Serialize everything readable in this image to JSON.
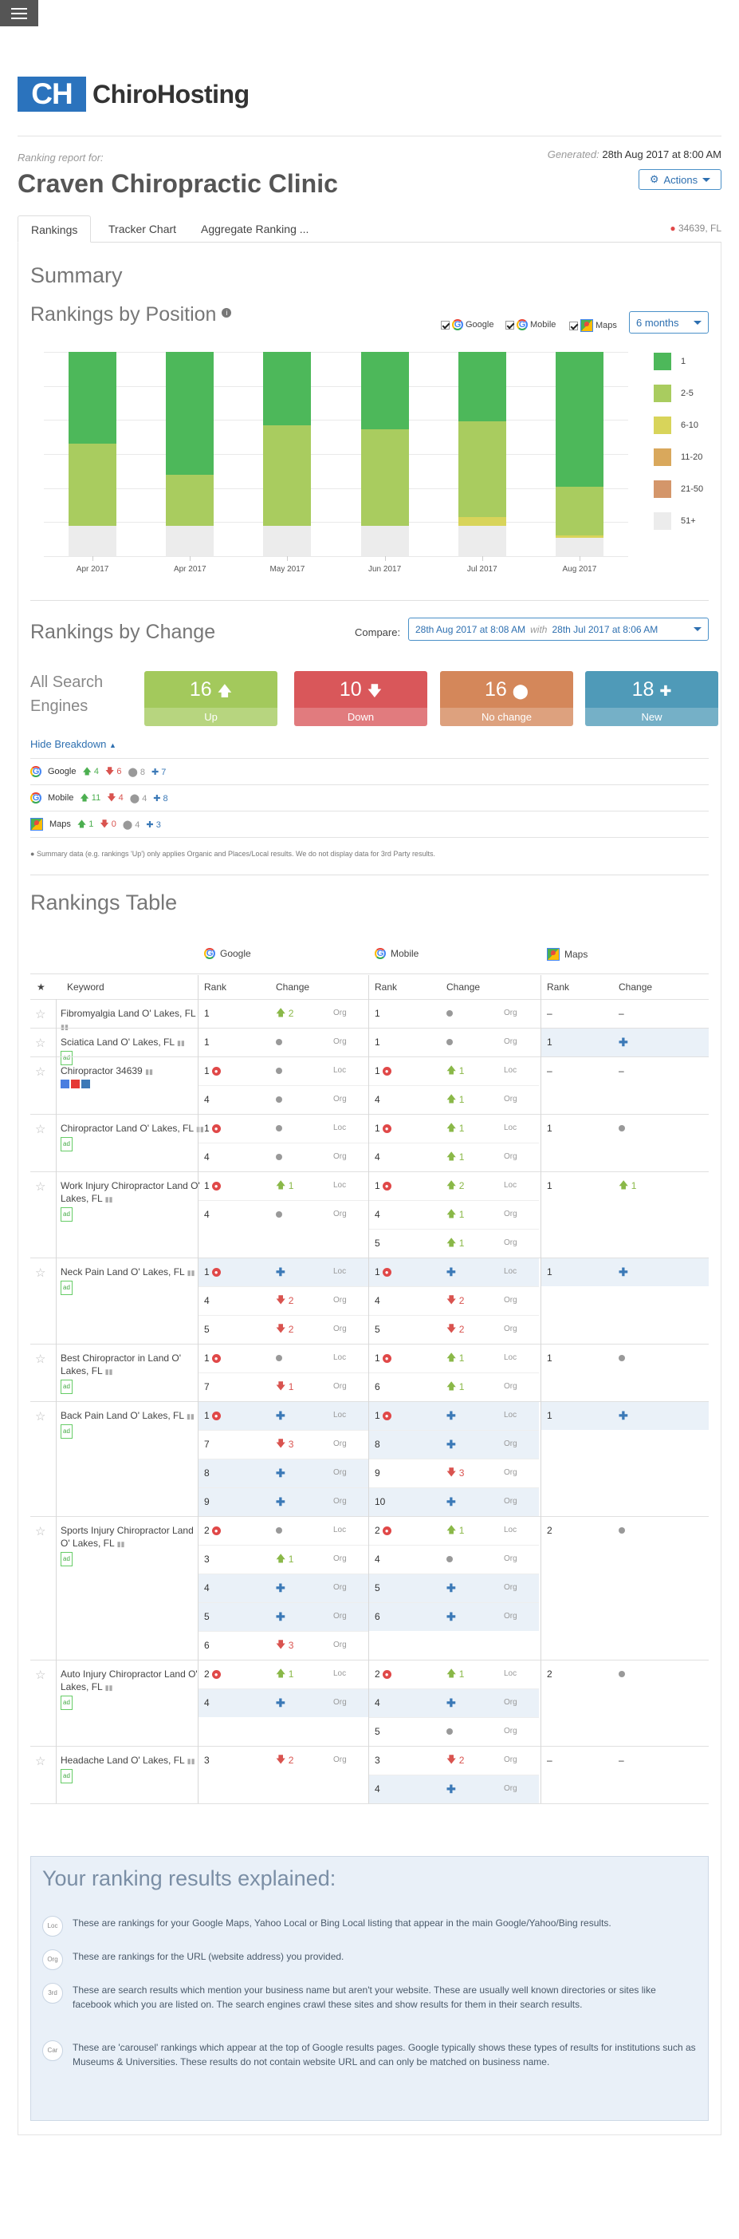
{
  "brand": {
    "logo_mark": "CH",
    "name": "ChiroHosting"
  },
  "report": {
    "label": "Ranking report for:",
    "clinic": "Craven Chiropractic Clinic",
    "generated_label": "Generated:",
    "generated_value": "28th Aug 2017 at 8:00 AM",
    "actions": "Actions"
  },
  "tabs": [
    "Rankings",
    "Tracker Chart",
    "Aggregate Ranking ..."
  ],
  "location": "34639, FL",
  "summary": {
    "title": "Summary",
    "subtitle": "Rankings by Position",
    "filters": [
      "Google",
      "Mobile",
      "Maps"
    ],
    "period": "6 months"
  },
  "chart_data": {
    "type": "bar",
    "stacked": true,
    "categories": [
      "Apr 2017",
      "Apr 2017",
      "May 2017",
      "Jun 2017",
      "Jul 2017",
      "Aug 2017"
    ],
    "ylim": [
      0,
      100
    ],
    "grid": true,
    "legend_position": "right",
    "series": [
      {
        "name": "51+",
        "color": "#ececec",
        "values": [
          15,
          15,
          15,
          15,
          15,
          9
        ]
      },
      {
        "name": "21-50",
        "color": "#d4966a",
        "values": [
          0,
          0,
          0,
          0,
          0,
          0
        ]
      },
      {
        "name": "11-20",
        "color": "#d9a85c",
        "values": [
          0,
          0,
          0,
          0,
          0,
          0
        ]
      },
      {
        "name": "6-10",
        "color": "#d8d45a",
        "values": [
          0,
          0,
          0,
          0,
          4,
          1
        ]
      },
      {
        "name": "2-5",
        "color": "#a9cc5f",
        "values": [
          40,
          25,
          49,
          47,
          47,
          24
        ]
      },
      {
        "name": "1",
        "color": "#4db85a",
        "values": [
          45,
          60,
          36,
          38,
          34,
          66
        ]
      }
    ]
  },
  "change": {
    "title": "Rankings by Change",
    "compare_label": "Compare:",
    "compare_from": "28th Aug 2017 at 8:08 AM",
    "with": "with",
    "compare_to": "28th Jul 2017 at 8:06 AM",
    "engines_label": "All Search Engines",
    "cards": [
      {
        "value": "16",
        "icon": "up-arrow",
        "label": "Up",
        "color": "#a3c95c"
      },
      {
        "value": "10",
        "icon": "down-arrow",
        "label": "Down",
        "color": "#d9575a"
      },
      {
        "value": "16",
        "icon": "circle",
        "label": "No change",
        "color": "#d4875a"
      },
      {
        "value": "18",
        "icon": "plus",
        "label": "New",
        "color": "#4f9ab8"
      }
    ],
    "hide_breakdown": "Hide Breakdown",
    "breakdown": [
      {
        "engine": "Google",
        "up": "4",
        "down": "6",
        "same": "8",
        "new": "7"
      },
      {
        "engine": "Mobile",
        "up": "11",
        "down": "4",
        "same": "4",
        "new": "8"
      },
      {
        "engine": "Maps",
        "up": "1",
        "down": "0",
        "same": "4",
        "new": "3"
      }
    ],
    "note": "Summary data (e.g. rankings 'Up') only applies Organic and Places/Local results. We do not display data for 3rd Party results."
  },
  "table": {
    "title": "Rankings Table",
    "engines": [
      "Google",
      "Mobile",
      "Maps"
    ],
    "headers": {
      "keyword": "Keyword",
      "rank": "Rank",
      "change": "Change"
    },
    "rows": [
      {
        "kw": "Fibromyalgia Land O' Lakes, FL",
        "lines": [
          [
            "1",
            "",
            "up",
            "2",
            "Org",
            "1",
            "",
            "same",
            "",
            "Org",
            "–",
            "",
            "dash",
            "",
            ""
          ]
        ]
      },
      {
        "kw": "Sciatica Land O' Lakes, FL",
        "lines": [
          [
            "1",
            "",
            "same",
            "",
            "Org",
            "1",
            "",
            "same",
            "",
            "Org",
            "1",
            "",
            "new",
            "",
            ""
          ]
        ]
      },
      {
        "kw": "Chiropractor 34639",
        "lines": [
          [
            "1",
            "b",
            "same",
            "",
            "Loc",
            "1",
            "b",
            "up",
            "1",
            "Loc",
            "–",
            "",
            "dash",
            "",
            ""
          ],
          [
            "4",
            "",
            "same",
            "",
            "Org",
            "4",
            "",
            "up",
            "1",
            "Org",
            "",
            "",
            "",
            "",
            ""
          ]
        ]
      },
      {
        "kw": "Chiropractor Land O' Lakes, FL",
        "lines": [
          [
            "1",
            "b",
            "same",
            "",
            "Loc",
            "1",
            "b",
            "up",
            "1",
            "Loc",
            "1",
            "",
            "same",
            "",
            ""
          ],
          [
            "4",
            "",
            "same",
            "",
            "Org",
            "4",
            "",
            "up",
            "1",
            "Org",
            "",
            "",
            "",
            "",
            ""
          ]
        ]
      },
      {
        "kw": "Work Injury Chiropractor Land O' Lakes, FL",
        "lines": [
          [
            "1",
            "b",
            "up",
            "1",
            "Loc",
            "1",
            "b",
            "up",
            "2",
            "Loc",
            "1",
            "",
            "up",
            "1",
            ""
          ],
          [
            "4",
            "",
            "same",
            "",
            "Org",
            "4",
            "",
            "up",
            "1",
            "Org",
            "",
            "",
            "",
            "",
            ""
          ],
          [
            "",
            "",
            "",
            "",
            "",
            "5",
            "",
            "up",
            "1",
            "Org",
            "",
            "",
            "",
            "",
            ""
          ]
        ]
      },
      {
        "kw": "Neck Pain Land O' Lakes, FL",
        "lines": [
          [
            "1",
            "b",
            "new",
            "",
            "Loc",
            "1",
            "b",
            "new",
            "",
            "Loc",
            "1",
            "",
            "new",
            "",
            ""
          ],
          [
            "4",
            "",
            "down",
            "2",
            "Org",
            "4",
            "",
            "down",
            "2",
            "Org",
            "",
            "",
            "",
            "",
            ""
          ],
          [
            "5",
            "",
            "down",
            "2",
            "Org",
            "5",
            "",
            "down",
            "2",
            "Org",
            "",
            "",
            "",
            "",
            ""
          ]
        ]
      },
      {
        "kw": "Best Chiropractor in Land O' Lakes, FL",
        "lines": [
          [
            "1",
            "b",
            "same",
            "",
            "Loc",
            "1",
            "b",
            "up",
            "1",
            "Loc",
            "1",
            "",
            "same",
            "",
            ""
          ],
          [
            "7",
            "",
            "down",
            "1",
            "Org",
            "6",
            "",
            "up",
            "1",
            "Org",
            "",
            "",
            "",
            "",
            ""
          ]
        ]
      },
      {
        "kw": "Back Pain Land O' Lakes, FL",
        "lines": [
          [
            "1",
            "b",
            "new",
            "",
            "Loc",
            "1",
            "b",
            "new",
            "",
            "Loc",
            "1",
            "",
            "new",
            "",
            ""
          ],
          [
            "7",
            "",
            "down",
            "3",
            "Org",
            "8",
            "",
            "new",
            "",
            "Org",
            "",
            "",
            "",
            "",
            ""
          ],
          [
            "8",
            "",
            "new",
            "",
            "Org",
            "9",
            "",
            "down",
            "3",
            "Org",
            "",
            "",
            "",
            "",
            ""
          ],
          [
            "9",
            "",
            "new",
            "",
            "Org",
            "10",
            "",
            "new",
            "",
            "Org",
            "",
            "",
            "",
            "",
            ""
          ]
        ]
      },
      {
        "kw": "Sports Injury Chiropractor Land O' Lakes, FL",
        "lines": [
          [
            "2",
            "b",
            "same",
            "",
            "Loc",
            "2",
            "b",
            "up",
            "1",
            "Loc",
            "2",
            "",
            "same",
            "",
            ""
          ],
          [
            "3",
            "",
            "up",
            "1",
            "Org",
            "4",
            "",
            "same",
            "",
            "Org",
            "",
            "",
            "",
            "",
            ""
          ],
          [
            "4",
            "",
            "new",
            "",
            "Org",
            "5",
            "",
            "new",
            "",
            "Org",
            "",
            "",
            "",
            "",
            ""
          ],
          [
            "5",
            "",
            "new",
            "",
            "Org",
            "6",
            "",
            "new",
            "",
            "Org",
            "",
            "",
            "",
            "",
            ""
          ],
          [
            "6",
            "",
            "down",
            "3",
            "Org",
            "",
            "",
            "",
            "",
            "",
            "",
            "",
            "",
            "",
            ""
          ]
        ]
      },
      {
        "kw": "Auto Injury Chiropractor Land O' Lakes, FL",
        "lines": [
          [
            "2",
            "b",
            "up",
            "1",
            "Loc",
            "2",
            "b",
            "up",
            "1",
            "Loc",
            "2",
            "",
            "same",
            "",
            ""
          ],
          [
            "4",
            "",
            "new",
            "",
            "Org",
            "4",
            "",
            "new",
            "",
            "Org",
            "",
            "",
            "",
            "",
            ""
          ],
          [
            "",
            "",
            "",
            "",
            "",
            "5",
            "",
            "same",
            "",
            "Org",
            "",
            "",
            "",
            "",
            ""
          ]
        ]
      },
      {
        "kw": "Headache Land O' Lakes, FL",
        "lines": [
          [
            "3",
            "",
            "down",
            "2",
            "Org",
            "3",
            "",
            "down",
            "2",
            "Org",
            "–",
            "",
            "dash",
            "",
            ""
          ],
          [
            "",
            "",
            "",
            "",
            "",
            "4",
            "",
            "new",
            "",
            "Org",
            "",
            "",
            "",
            "",
            ""
          ]
        ]
      }
    ]
  },
  "explained": {
    "title": "Your ranking results explained:",
    "items": [
      {
        "tag": "Loc",
        "text": "These are rankings for your Google Maps, Yahoo Local or Bing Local listing that appear in the main Google/Yahoo/Bing results."
      },
      {
        "tag": "Org",
        "text": "These are rankings for the URL (website address) you provided."
      },
      {
        "tag": "3rd",
        "text": "These are search results which mention your business name but aren't your website. These are usually well known directories or sites like facebook which you are listed on. The search engines crawl these sites and show results for them in their search results."
      },
      {
        "tag": "Car",
        "text": "These are 'carousel' rankings which appear at the top of Google results pages. Google typically shows these types of results for institutions such as Museums & Universities. These results do not contain website URL and can only be matched on business name."
      }
    ]
  }
}
